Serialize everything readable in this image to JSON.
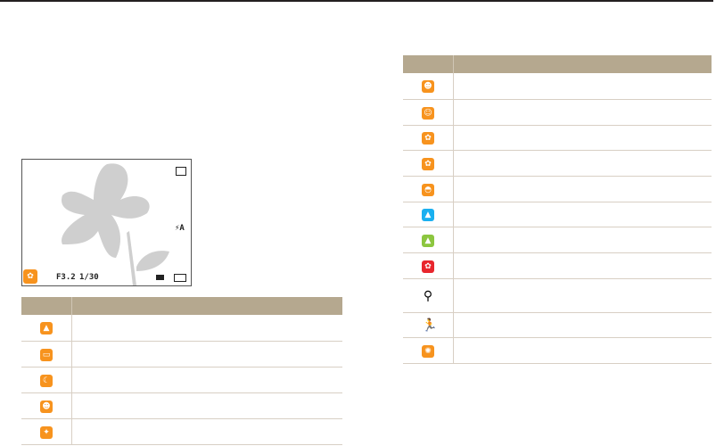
{
  "camera_screen": {
    "aperture": "F3.2",
    "shutter": "1/30",
    "flash_label": "A",
    "scene_icon": "macro-flower-icon",
    "colors": {
      "accent": "#f7931e"
    }
  },
  "left_table": {
    "header_color": "#b5a88f",
    "rows": [
      {
        "icon": "landscape-icon",
        "color": "#f7931e",
        "glyph": "▲"
      },
      {
        "icon": "white-scene-icon",
        "color": "#f7931e",
        "glyph": "▭"
      },
      {
        "icon": "night-icon",
        "color": "#f7931e",
        "glyph": "☾"
      },
      {
        "icon": "night-portrait-icon",
        "color": "#f7931e",
        "glyph": "☻"
      },
      {
        "icon": "backlight-icon",
        "color": "#f7931e",
        "glyph": "✦"
      }
    ]
  },
  "right_table": {
    "header_color": "#b5a88f",
    "rows": [
      {
        "icon": "backlight-portrait-icon",
        "color": "#f7931e",
        "glyph": "☻"
      },
      {
        "icon": "portrait-icon",
        "color": "#f7931e",
        "glyph": "☺"
      },
      {
        "icon": "macro-icon",
        "color": "#f7931e",
        "glyph": "✿"
      },
      {
        "icon": "macro-text-icon",
        "color": "#f7931e",
        "glyph": "✿"
      },
      {
        "icon": "beach-snow-icon",
        "color": "#f7931e",
        "glyph": "◓"
      },
      {
        "icon": "blue-sky-icon",
        "color": "#1ab0f0",
        "glyph": "▲"
      },
      {
        "icon": "natural-green-icon",
        "color": "#8cc63f",
        "glyph": "▲"
      },
      {
        "icon": "sunset-icon",
        "color": "#e8262d",
        "glyph": "✿"
      },
      {
        "icon": "tripod-icon",
        "color": "",
        "glyph": "⚲"
      },
      {
        "icon": "action-icon",
        "color": "",
        "glyph": "🏃"
      },
      {
        "icon": "auto-icon",
        "color": "#f7931e",
        "glyph": "✺"
      }
    ]
  }
}
